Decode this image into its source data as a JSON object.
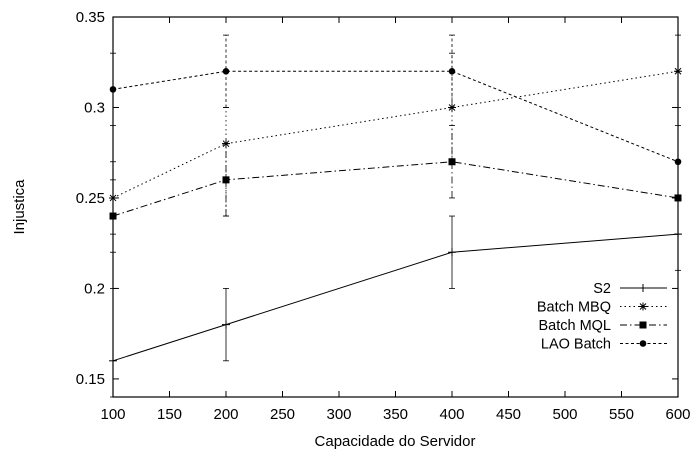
{
  "chart_data": {
    "type": "line",
    "title": "",
    "xlabel": "Capacidade do Servidor",
    "ylabel": "Injustica",
    "xlim": [
      100,
      600
    ],
    "ylim": [
      0.14,
      0.35
    ],
    "x_ticks": [
      100,
      150,
      200,
      250,
      300,
      350,
      400,
      450,
      500,
      550,
      600
    ],
    "y_ticks": [
      0.15,
      0.2,
      0.25,
      0.3,
      0.35
    ],
    "y_tick_labels": [
      "0.15",
      "0.2",
      "0.25",
      "0.3",
      "0.35"
    ],
    "grid": false,
    "legend_position": "bottom-right",
    "x": [
      100,
      200,
      400,
      600
    ],
    "series": [
      {
        "name": "S2",
        "style": "solid",
        "marker": "plus",
        "values": [
          0.16,
          0.18,
          0.22,
          0.23
        ],
        "error_low": [
          0.12,
          0.16,
          0.2,
          0.21
        ],
        "error_high": [
          0.2,
          0.2,
          0.24,
          0.25
        ]
      },
      {
        "name": "Batch MBQ",
        "style": "dotted",
        "marker": "star",
        "values": [
          0.25,
          0.28,
          0.3,
          0.32
        ],
        "error_low": [
          0.23,
          0.24,
          0.27,
          0.3
        ],
        "error_high": [
          0.27,
          0.3,
          0.33,
          0.34
        ]
      },
      {
        "name": "Batch MQL",
        "style": "dashdot",
        "marker": "square",
        "values": [
          0.24,
          0.26,
          0.27,
          0.25
        ],
        "error_low": [
          0.22,
          0.24,
          0.25,
          0.23
        ],
        "error_high": [
          0.26,
          0.28,
          0.29,
          0.27
        ]
      },
      {
        "name": "LAO Batch",
        "style": "dashed",
        "marker": "circle",
        "values": [
          0.31,
          0.32,
          0.32,
          0.27
        ],
        "error_low": [
          0.29,
          0.3,
          0.3,
          0.25
        ],
        "error_high": [
          0.33,
          0.34,
          0.34,
          0.29
        ]
      }
    ]
  }
}
